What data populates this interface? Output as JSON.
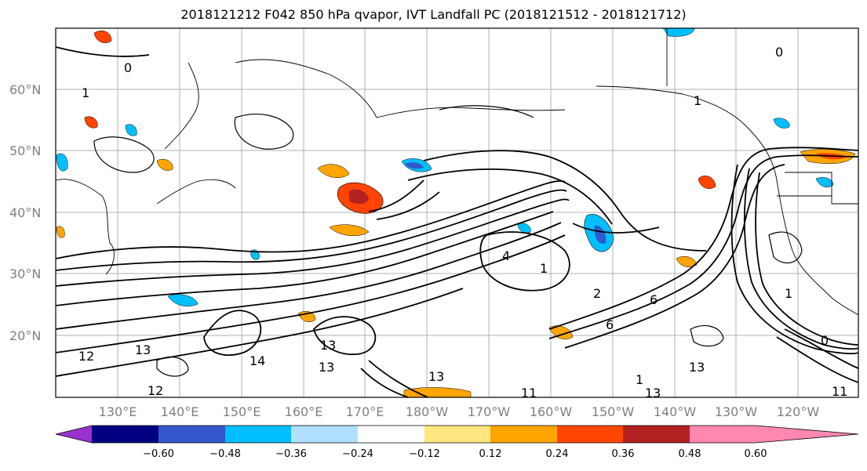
{
  "title": "2018121212 F042 850 hPa qvapor, IVT Landfall PC (2018121512 - 2018121712)",
  "lat_labels": [
    "60°N",
    "50°N",
    "40°N",
    "30°N",
    "20°N"
  ],
  "lon_labels": [
    "130°E",
    "140°E",
    "150°E",
    "160°E",
    "170°E",
    "180°W",
    "170°W",
    "160°W",
    "150°W",
    "140°W",
    "130°W",
    "120°W"
  ],
  "colorbar": {
    "colors": [
      "#9932cc",
      "#000080",
      "#3357cc",
      "#00bfff",
      "#b0e0ff",
      "#ffffff",
      "#ffe680",
      "#ffa500",
      "#ff4500",
      "#b22222",
      "#ff88b0"
    ],
    "tick_labels": [
      "−0.60",
      "−0.48",
      "−0.36",
      "−0.24",
      "−0.12",
      "0.12",
      "0.24",
      "0.36",
      "0.48",
      "0.60"
    ]
  },
  "contour_labels": [
    "1",
    "0",
    "0",
    "1",
    "4",
    "1",
    "2",
    "6",
    "1",
    "6",
    "12",
    "13",
    "14",
    "13",
    "13",
    "13",
    "12",
    "11",
    "13",
    "13",
    "0",
    "1",
    "11"
  ],
  "extent": {
    "lon": [
      "120°E",
      "115°W"
    ],
    "lat": [
      "10°N",
      "70°N"
    ]
  }
}
